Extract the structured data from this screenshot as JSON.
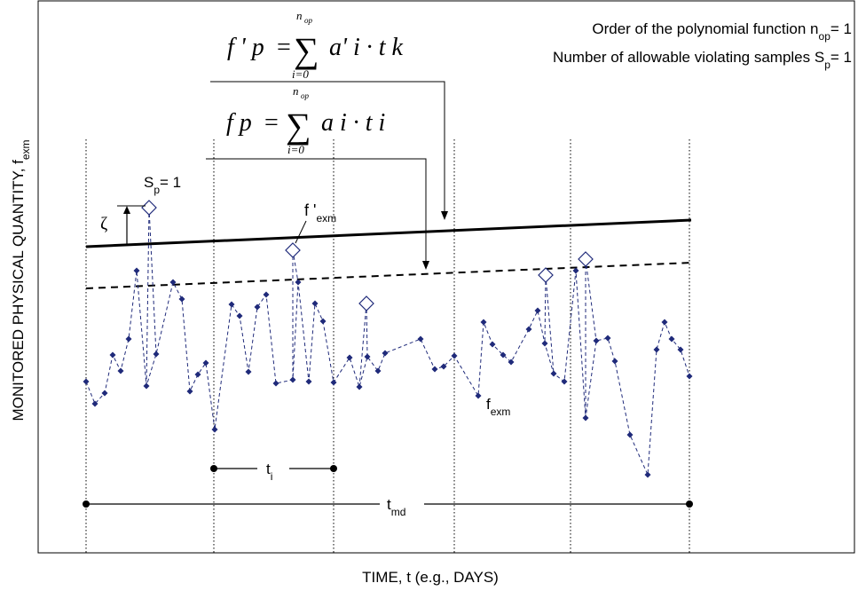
{
  "axes": {
    "xlabel": "TIME, t (e.g., DAYS)",
    "ylabel_main": "MONITORED PHYSICAL QUANTITY, f",
    "ylabel_sub": "exm"
  },
  "notes": {
    "order_main": "Order of the polynomial function n",
    "order_sub": "op",
    "order_value": "= 1",
    "samples_main": "Number of allowable violating samples S",
    "samples_sub": "p",
    "samples_value": "= 1"
  },
  "formulas": {
    "upper": {
      "lhs": "f ' p",
      "eq": "=",
      "sum": "∑",
      "top": "n",
      "top_sub": "op",
      "bottom": "i=0",
      "term": "a' i · t k"
    },
    "lower": {
      "lhs": "f p",
      "eq": "=",
      "sum": "∑",
      "top": "n",
      "top_sub": "op",
      "bottom": "i=0",
      "term": "a i · t i"
    }
  },
  "labels": {
    "sp_main": "S",
    "sp_sub": "p",
    "sp_value": "= 1",
    "zeta": "ζ",
    "fprime_main": "f '",
    "fprime_sub": "exm",
    "fexm_main": "f",
    "fexm_sub": "exm",
    "ti_main": "t",
    "ti_sub": "i",
    "tmd_main": "t",
    "tmd_sub": "md"
  },
  "chart_data": {
    "type": "line",
    "series": [
      {
        "name": "f",
        "x": [
          97,
          107,
          118,
          127,
          136,
          145,
          154,
          165,
          176,
          195,
          205,
          214,
          223,
          232,
          242,
          261,
          270,
          280,
          290,
          300,
          311,
          330,
          336,
          348,
          355,
          364,
          376,
          394,
          405,
          414,
          426,
          434,
          474,
          490,
          500,
          512,
          539,
          545,
          555,
          567,
          576,
          596,
          606,
          614,
          624,
          636,
          649,
          660,
          672,
          685,
          693,
          710,
          730,
          740,
          749,
          757,
          767,
          777
        ],
        "y": [
          430,
          455,
          443,
          400,
          418,
          382,
          305,
          435,
          399,
          318,
          337,
          441,
          422,
          409,
          484,
          343,
          356,
          419,
          346,
          332,
          432,
          428,
          318,
          430,
          342,
          362,
          431,
          403,
          436,
          402,
          418,
          398,
          382,
          416,
          413,
          401,
          446,
          363,
          388,
          400,
          408,
          371,
          350,
          387,
          421,
          430,
          305,
          471,
          384,
          381,
          407,
          490,
          535,
          394,
          363,
          382,
          394,
          424
        ]
      }
    ],
    "violating_samples": [
      {
        "x": 168,
        "y": 234
      },
      {
        "x": 330,
        "y": 282
      },
      {
        "x": 413,
        "y": 342
      },
      {
        "x": 615,
        "y": 310
      },
      {
        "x": 660,
        "y": 292
      }
    ],
    "thresholds": [
      {
        "name": "f'p",
        "style": "solid",
        "x": [
          97,
          779
        ],
        "y": [
          278,
          248
        ]
      },
      {
        "name": "fp",
        "style": "dashed",
        "x": [
          97,
          779
        ],
        "y": [
          325,
          296
        ]
      }
    ],
    "window_boundaries": [
      97,
      241,
      376,
      512,
      643,
      777
    ],
    "grid": false
  }
}
